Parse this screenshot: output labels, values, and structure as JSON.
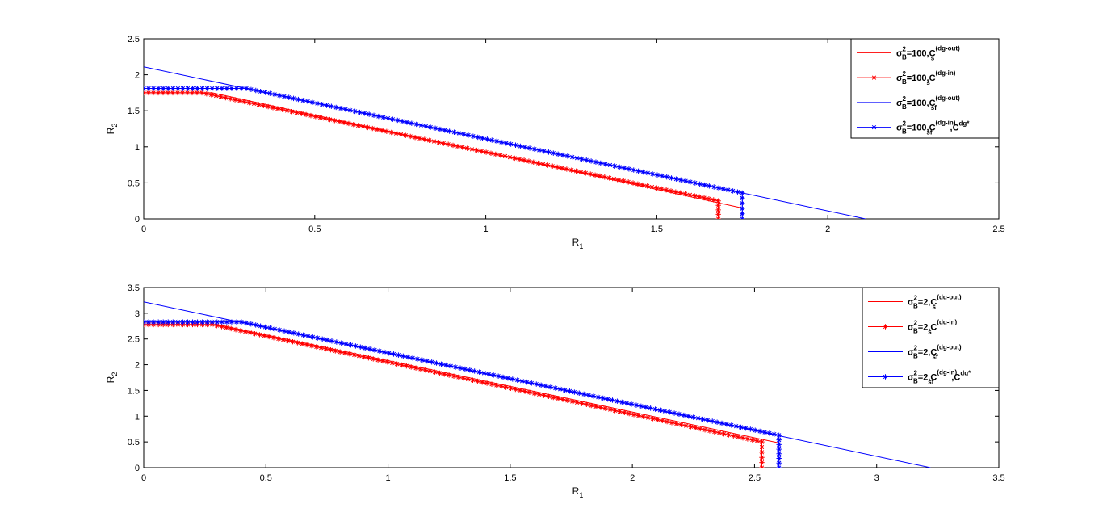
{
  "chart_data": [
    {
      "type": "line",
      "xlabel": "R",
      "xlabel_sub": "1",
      "ylabel": "R",
      "ylabel_sub": "2",
      "xlim": [
        0,
        2.5
      ],
      "ylim": [
        0,
        2.5
      ],
      "xticks": [
        0,
        0.5,
        1,
        1.5,
        2,
        2.5
      ],
      "xtick_labels": [
        "0",
        "0.5",
        "1",
        "1.5",
        "2",
        "2.5"
      ],
      "yticks": [
        0,
        0.5,
        1,
        1.5,
        2,
        2.5
      ],
      "ytick_labels": [
        "0",
        "0.5",
        "1",
        "1.5",
        "2",
        "2.5"
      ],
      "grid": false,
      "legend_position": "top-right",
      "series": [
        {
          "legend": {
            "base": "σ",
            "sup1": "2",
            "sub1": "B",
            "eq": "=100,C",
            "sup2": "(dg-out)",
            "sub2": "s",
            "tail": "",
            "sup3": ""
          },
          "color": "#ff0000",
          "marker": "none",
          "points": [
            [
              0,
              1.75
            ],
            [
              0.2,
              1.75
            ],
            [
              1.75,
              0.15
            ]
          ]
        },
        {
          "legend": {
            "base": "σ",
            "sup1": "2",
            "sub1": "B",
            "eq": "=100,C",
            "sup2": "(dg-in)",
            "sub2": "s",
            "tail": "",
            "sup3": ""
          },
          "color": "#ff0000",
          "marker": "star",
          "points": [
            [
              0,
              1.75
            ],
            [
              0.17,
              1.75
            ],
            [
              1.68,
              0.25
            ],
            [
              1.68,
              0.0
            ]
          ]
        },
        {
          "legend": {
            "base": "σ",
            "sup1": "2",
            "sub1": "B",
            "eq": "=100,C",
            "sup2": "(dg-out)",
            "sub2": "sf",
            "tail": "",
            "sup3": ""
          },
          "color": "#0000ff",
          "marker": "none",
          "points": [
            [
              0,
              2.11
            ],
            [
              2.11,
              0
            ]
          ]
        },
        {
          "legend": {
            "base": "σ",
            "sup1": "2",
            "sub1": "B",
            "eq": "=100,C",
            "sup2": "(dg-in)",
            "sub2": "sf",
            "tail": ",C",
            "sup3": "dg*"
          },
          "color": "#0000ff",
          "marker": "star",
          "points": [
            [
              0,
              1.81
            ],
            [
              0.3,
              1.81
            ],
            [
              1.75,
              0.36
            ],
            [
              1.75,
              0.0
            ]
          ]
        }
      ]
    },
    {
      "type": "line",
      "xlabel": "R",
      "xlabel_sub": "1",
      "ylabel": "R",
      "ylabel_sub": "2",
      "xlim": [
        0,
        3.5
      ],
      "ylim": [
        0,
        3.5
      ],
      "xticks": [
        0,
        0.5,
        1,
        1.5,
        2,
        2.5,
        3,
        3.5
      ],
      "xtick_labels": [
        "0",
        "0.5",
        "1",
        "1.5",
        "2",
        "2.5",
        "3",
        "3.5"
      ],
      "yticks": [
        0,
        0.5,
        1,
        1.5,
        2,
        2.5,
        3,
        3.5
      ],
      "ytick_labels": [
        "0",
        "0.5",
        "1",
        "1.5",
        "2",
        "2.5",
        "3",
        "3.5"
      ],
      "grid": false,
      "legend_position": "top-right",
      "series": [
        {
          "legend": {
            "base": "σ",
            "sup1": "2",
            "sub1": "B",
            "eq": "=2,C",
            "sup2": "(dg-out)",
            "sub2": "s",
            "tail": "",
            "sup3": ""
          },
          "color": "#ff0000",
          "marker": "none",
          "points": [
            [
              0,
              2.78
            ],
            [
              0.3,
              2.78
            ],
            [
              2.6,
              0.48
            ]
          ]
        },
        {
          "legend": {
            "base": "σ",
            "sup1": "2",
            "sub1": "B",
            "eq": "=2,C",
            "sup2": "(dg-in)",
            "sub2": "s",
            "tail": "",
            "sup3": ""
          },
          "color": "#ff0000",
          "marker": "star",
          "points": [
            [
              0,
              2.78
            ],
            [
              0.28,
              2.78
            ],
            [
              2.53,
              0.5
            ],
            [
              2.53,
              0.0
            ]
          ]
        },
        {
          "legend": {
            "base": "σ",
            "sup1": "2",
            "sub1": "B",
            "eq": "=2,C",
            "sup2": "(dg-out)",
            "sub2": "sf",
            "tail": "",
            "sup3": ""
          },
          "color": "#0000ff",
          "marker": "none",
          "points": [
            [
              0,
              3.22
            ],
            [
              3.22,
              0
            ]
          ]
        },
        {
          "legend": {
            "base": "σ",
            "sup1": "2",
            "sub1": "B",
            "eq": "=2,C",
            "sup2": "(dg-in)",
            "sub2": "sf",
            "tail": ",C",
            "sup3": "dg*"
          },
          "color": "#0000ff",
          "marker": "star",
          "points": [
            [
              0,
              2.83
            ],
            [
              0.4,
              2.83
            ],
            [
              2.6,
              0.63
            ],
            [
              2.6,
              0.0
            ]
          ]
        }
      ]
    }
  ]
}
